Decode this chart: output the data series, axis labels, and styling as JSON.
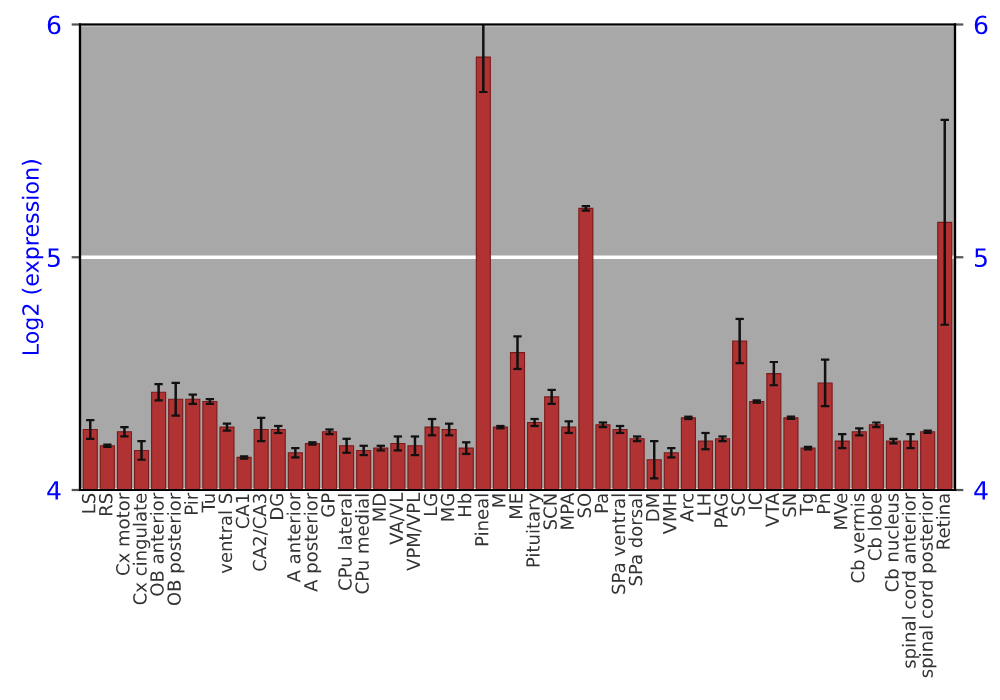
{
  "chart_data": {
    "type": "bar",
    "ylabel": "Log2 (expression)",
    "categories": [
      "LS",
      "RS",
      "Cx motor",
      "Cx cingulate",
      "OB anterior",
      "OB posterior",
      "Pir",
      "Tu",
      "ventral S",
      "CA1",
      "CA2/CA3",
      "DG",
      "A anterior",
      "A posterior",
      "GP",
      "CPu lateral",
      "CPu medial",
      "MD",
      "VA/VL",
      "VPM/VPL",
      "LG",
      "MG",
      "Hb",
      "Pineal",
      "M",
      "ME",
      "Pituitary",
      "SCN",
      "MPA",
      "SO",
      "Pa",
      "SPa ventral",
      "SPa dorsal",
      "DM",
      "VMH",
      "Arc",
      "LH",
      "PAG",
      "SC",
      "IC",
      "VTA",
      "SN",
      "Tg",
      "Pn",
      "MVe",
      "Cb vermis",
      "Cb lobe",
      "Cb nucleus",
      "spinal cord anterior",
      "spinal cord posterior",
      "Retina"
    ],
    "values": [
      4.26,
      4.19,
      4.25,
      4.17,
      4.42,
      4.39,
      4.39,
      4.38,
      4.27,
      4.14,
      4.26,
      4.26,
      4.16,
      4.2,
      4.25,
      4.19,
      4.17,
      4.18,
      4.2,
      4.19,
      4.27,
      4.26,
      4.18,
      5.86,
      4.27,
      4.59,
      4.29,
      4.4,
      4.27,
      5.21,
      4.28,
      4.26,
      4.22,
      4.13,
      4.16,
      4.31,
      4.21,
      4.22,
      4.64,
      4.38,
      4.5,
      4.31,
      4.18,
      4.46,
      4.21,
      4.25,
      4.28,
      4.21,
      4.21,
      4.25,
      5.15
    ],
    "errors": [
      0.04,
      0.005,
      0.02,
      0.04,
      0.035,
      0.07,
      0.02,
      0.01,
      0.015,
      0.005,
      0.05,
      0.015,
      0.02,
      0.005,
      0.01,
      0.03,
      0.02,
      0.01,
      0.03,
      0.04,
      0.035,
      0.025,
      0.025,
      0.15,
      0.005,
      0.07,
      0.015,
      0.03,
      0.025,
      0.01,
      0.01,
      0.015,
      0.01,
      0.08,
      0.02,
      0.005,
      0.035,
      0.01,
      0.095,
      0.005,
      0.05,
      0.005,
      0.005,
      0.1,
      0.03,
      0.015,
      0.01,
      0.01,
      0.03,
      0.005,
      0.44
    ],
    "color": "#b03232",
    "ylim": [
      4,
      6
    ],
    "yticks": [
      4,
      5,
      6
    ],
    "y2lim": [
      4,
      6
    ],
    "y2ticks": [
      4,
      5,
      6
    ],
    "grid": "y"
  }
}
